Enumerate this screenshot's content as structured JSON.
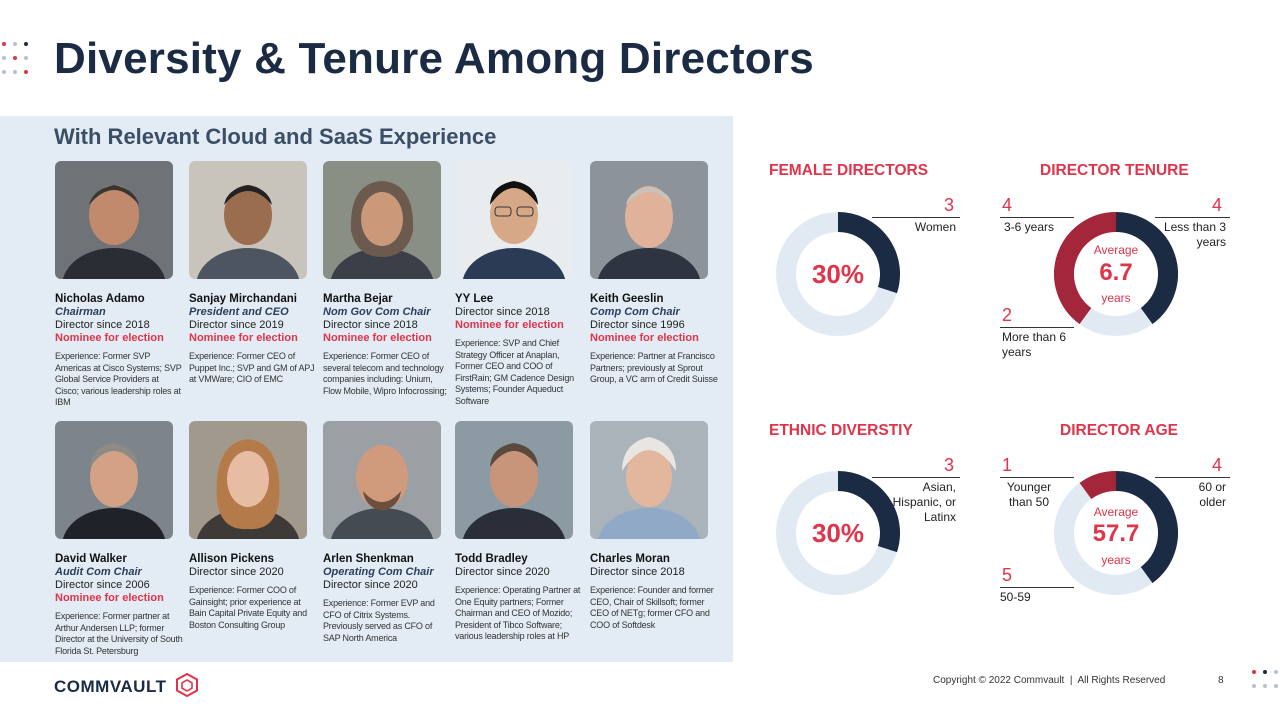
{
  "title": "Diversity & Tenure Among Directors",
  "panel_title": "With Relevant Cloud and SaaS Experience",
  "directors": [
    {
      "name": "Nicholas Adamo",
      "role": "Chairman",
      "since": "Director since 2018",
      "nominee": "Nominee for election",
      "exp": "Experience: Former SVP Americas at Cisco Systems; SVP Global Service Providers at Cisco; various leadership roles at IBM"
    },
    {
      "name": "Sanjay Mirchandani",
      "role": "President and CEO",
      "since": "Director since 2019",
      "nominee": "Nominee for election",
      "exp": "Experience: Former CEO of Puppet Inc.; SVP and GM of APJ at VMWare; CIO of EMC"
    },
    {
      "name": "Martha Bejar",
      "role": "Nom Gov Com Chair",
      "since": "Director since 2018",
      "nominee": "Nominee for election",
      "exp": "Experience: Former CEO of several telecom and technology companies including: Unium, Flow Mobile, Wipro Infocrossing;"
    },
    {
      "name": "YY Lee",
      "role": "",
      "since": "Director since 2018",
      "nominee": "Nominee for election",
      "exp": "Experience: SVP and Chief Strategy Officer at Anaplan, Former CEO and COO of FirstRain; GM Cadence Design Systems; Founder Aqueduct Software"
    },
    {
      "name": "Keith Geeslin",
      "role": "Comp Com Chair",
      "since": "Director since 1996",
      "nominee": "Nominee for election",
      "exp": "Experience: Partner at Francisco Partners; previously at Sprout Group, a VC arm of Credit Suisse"
    },
    {
      "name": "David Walker",
      "role": "Audit Com Chair",
      "since": "Director since 2006",
      "nominee": "Nominee for election",
      "exp": "Experience: Former partner at Arthur Andersen LLP; former Director at the University of South Florida St. Petersburg"
    },
    {
      "name": "Allison Pickens",
      "role": "",
      "since": "Director since 2020",
      "nominee": "",
      "exp": "Experience: Former COO of Gainsight; prior experience at Bain Capital Private Equity and Boston Consulting Group"
    },
    {
      "name": "Arlen Shenkman",
      "role": "Operating Com Chair",
      "since": "Director since 2020",
      "nominee": "",
      "exp": "Experience: Former EVP and CFO of Citrix Systems. Previously served as CFO of SAP North America"
    },
    {
      "name": "Todd Bradley",
      "role": "",
      "since": "Director since 2020",
      "nominee": "",
      "exp": "Experience: Operating Partner at One Equity partners; Former Chairman and CEO of Mozido; President of Tibco Software; various leadership roles at HP"
    },
    {
      "name": "Charles Moran",
      "role": "",
      "since": "Director since 2018",
      "nominee": "",
      "exp": "Experience: Founder and former CEO, Chair of Skillsoft; former CEO of NETg; former CFO and COO of Softdesk"
    }
  ],
  "female": {
    "title": "FEMALE DIRECTORS",
    "pct": "30%",
    "fraction": 0.3,
    "count": "3",
    "label": "Women"
  },
  "ethnic": {
    "title": "ETHNIC DIVERSTIY",
    "pct": "30%",
    "fraction": 0.3,
    "count": "3",
    "label": "Asian, Hispanic, or Latinx"
  },
  "tenure": {
    "title": "DIRECTOR TENURE",
    "avg_label": "Average",
    "avg": "6.7",
    "unit": "years",
    "segments": [
      {
        "count": "4",
        "label": "Less than 3 years",
        "value": 4
      },
      {
        "count": "2",
        "label": "More than 6 years",
        "value": 2
      },
      {
        "count": "4",
        "label": "3-6 years",
        "value": 4
      }
    ]
  },
  "age": {
    "title": "DIRECTOR AGE",
    "avg_label": "Average",
    "avg": "57.7",
    "unit": "years",
    "segments": [
      {
        "count": "4",
        "label": "60 or older",
        "value": 4
      },
      {
        "count": "5",
        "label": "50-59",
        "value": 5
      },
      {
        "count": "1",
        "label": "Younger than 50",
        "value": 1
      }
    ]
  },
  "logo": "COMMVAULT",
  "copyright": "Copyright © 2022 Commvault  |  All Rights Reserved",
  "page": "8",
  "colors": {
    "navy": "#1b2b44",
    "red": "#e0344b",
    "maroon": "#a3263a",
    "light": "#e3ecf4"
  }
}
